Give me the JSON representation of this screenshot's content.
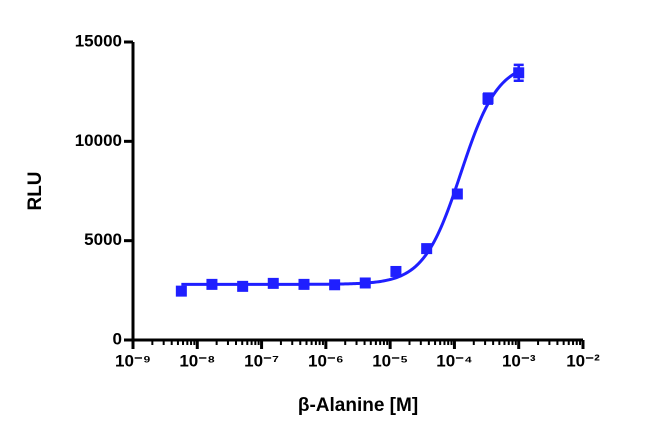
{
  "chart_data": {
    "type": "scatter",
    "x_label": "β-Alanine [M]",
    "y_label": "RLU",
    "xlog": true,
    "xlim": [
      1e-09,
      0.01
    ],
    "xticks": [
      {
        "value": 1e-09,
        "label": "10⁻⁹"
      },
      {
        "value": 1e-08,
        "label": "10⁻⁸"
      },
      {
        "value": 1e-07,
        "label": "10⁻⁷"
      },
      {
        "value": 1e-06,
        "label": "10⁻⁶"
      },
      {
        "value": 1e-05,
        "label": "10⁻⁵"
      },
      {
        "value": 0.0001,
        "label": "10⁻⁴"
      },
      {
        "value": 0.001,
        "label": "10⁻³"
      },
      {
        "value": 0.01,
        "label": "10⁻²"
      }
    ],
    "ylim": [
      0,
      15000
    ],
    "yticks": [
      0,
      5000,
      10000,
      15000
    ],
    "color": "#1f1fff",
    "x": [
      5.65e-09,
      1.69e-08,
      5.08e-08,
      1.52e-07,
      4.57e-07,
      1.37e-06,
      4.1e-06,
      1.23e-05,
      3.7e-05,
      0.000111,
      0.000333,
      0.001
    ],
    "values": [
      2460,
      2800,
      2700,
      2850,
      2800,
      2780,
      2870,
      3450,
      4600,
      7350,
      12150,
      13450
    ],
    "errors": [
      100,
      100,
      100,
      100,
      100,
      100,
      100,
      150,
      150,
      150,
      250,
      400
    ],
    "fit": {
      "bottom": 2800,
      "top": 14000,
      "log_ec50": -3.9,
      "hill": 1.5
    }
  }
}
